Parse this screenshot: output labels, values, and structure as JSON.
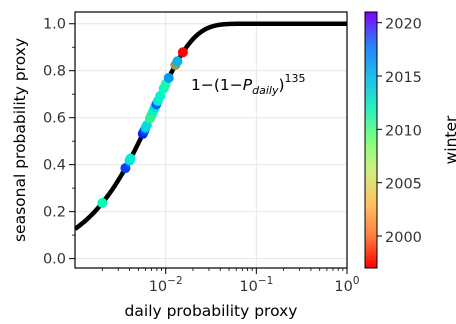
{
  "chart_data": {
    "type": "scatter",
    "title": "",
    "xlabel": "daily probability proxy",
    "ylabel": "seasonal probability proxy",
    "x_scale": "log",
    "xlim": [
      0.001,
      1
    ],
    "ylim": [
      -0.04,
      1.05
    ],
    "x_ticks": [
      {
        "value": 0.01,
        "base": "10",
        "exp": "−2"
      },
      {
        "value": 0.1,
        "base": "10",
        "exp": "−1"
      },
      {
        "value": 1,
        "base": "10",
        "exp": "0"
      }
    ],
    "y_ticks": [
      {
        "value": 0.0,
        "label": "0.0"
      },
      {
        "value": 0.2,
        "label": "0.2"
      },
      {
        "value": 0.4,
        "label": "0.4"
      },
      {
        "value": 0.6,
        "label": "0.6"
      },
      {
        "value": 0.8,
        "label": "0.8"
      },
      {
        "value": 1.0,
        "label": "1.0"
      }
    ],
    "grid": true,
    "curve": {
      "formula": "1 - (1 - P_daily)^135",
      "n": 135,
      "color": "#000000",
      "label": {
        "prefix": "1−(1−",
        "var": "P",
        "sub": "daily",
        "suffix": ")",
        "sup": "135"
      }
    },
    "colorbar": {
      "label": "winter",
      "range": [
        1997,
        2021
      ],
      "ticks": [
        {
          "value": 2000,
          "label": "2000"
        },
        {
          "value": 2005,
          "label": "2005"
        },
        {
          "value": 2010,
          "label": "2010"
        },
        {
          "value": 2015,
          "label": "2015"
        },
        {
          "value": 2020,
          "label": "2020"
        }
      ],
      "colormap": "rainbow_r"
    },
    "points": [
      {
        "x": 0.002,
        "year": 2009
      },
      {
        "x": 0.0036,
        "year": 2019
      },
      {
        "x": 0.004,
        "year": 2013
      },
      {
        "x": 0.0041,
        "year": 2012
      },
      {
        "x": 0.0056,
        "year": 2020
      },
      {
        "x": 0.0058,
        "year": 2019
      },
      {
        "x": 0.006,
        "year": 2014
      },
      {
        "x": 0.0062,
        "year": 2013
      },
      {
        "x": 0.0067,
        "year": 2006
      },
      {
        "x": 0.0069,
        "year": 2008
      },
      {
        "x": 0.0071,
        "year": 2005
      },
      {
        "x": 0.0073,
        "year": 2010
      },
      {
        "x": 0.0076,
        "year": 2013
      },
      {
        "x": 0.0079,
        "year": 2018
      },
      {
        "x": 0.0082,
        "year": 2012
      },
      {
        "x": 0.0087,
        "year": 2011
      },
      {
        "x": 0.0095,
        "year": 2010
      },
      {
        "x": 0.01,
        "year": 2008
      },
      {
        "x": 0.0108,
        "year": 2016
      },
      {
        "x": 0.0128,
        "year": 2002
      },
      {
        "x": 0.0135,
        "year": 2015
      },
      {
        "x": 0.0155,
        "year": 1997
      }
    ]
  }
}
